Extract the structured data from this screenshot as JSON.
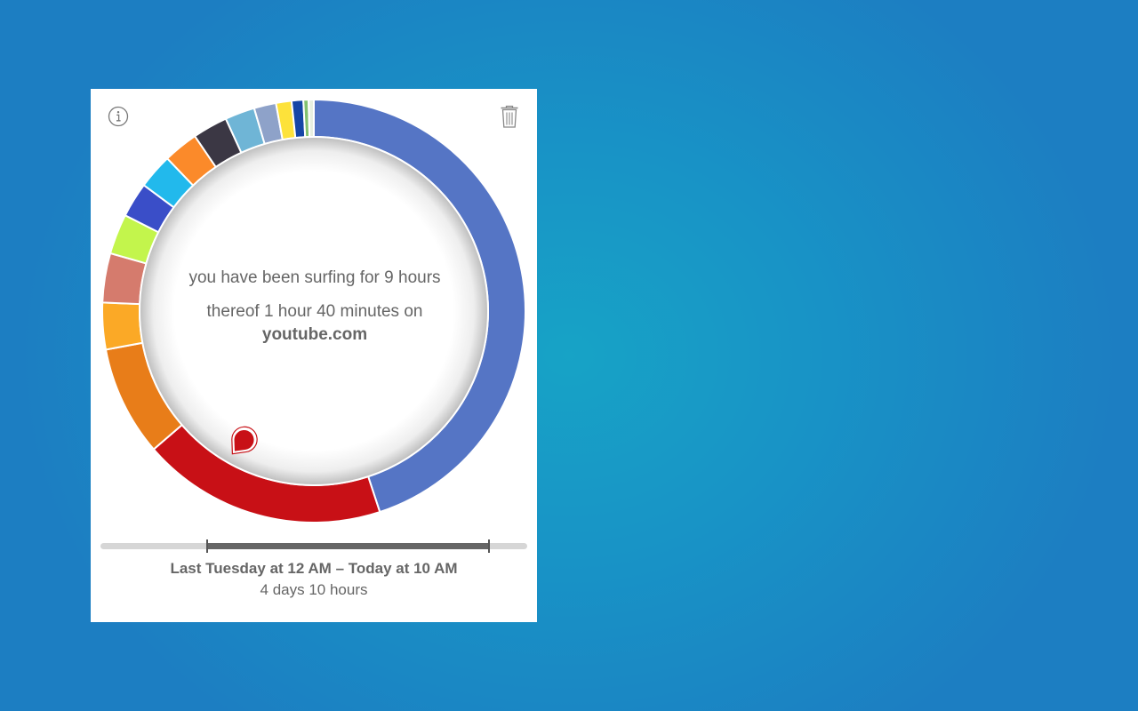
{
  "summary": {
    "surfing_text": "you have been surfing for 9 hours",
    "thereof_text": "thereof 1 hour 40 minutes on",
    "domain": "youtube.com"
  },
  "range": {
    "label": "Last Tuesday at 12 AM – Today at 10 AM",
    "duration": "4 days 10 hours",
    "start_fraction": 0.25,
    "end_fraction": 0.91
  },
  "icons": {
    "info": "info-icon",
    "trash": "trash-icon",
    "marker": "map-marker-icon"
  },
  "chart_data": {
    "type": "pie",
    "segments": [
      {
        "value": 0.454,
        "color": "#5575c5"
      },
      {
        "value": 0.189,
        "color": "#c81016"
      },
      {
        "value": 0.085,
        "color": "#e87d19"
      },
      {
        "value": 0.036,
        "color": "#fba926"
      },
      {
        "value": 0.038,
        "color": "#d57b6d"
      },
      {
        "value": 0.031,
        "color": "#c3f54c"
      },
      {
        "value": 0.027,
        "color": "#3a4ec8"
      },
      {
        "value": 0.027,
        "color": "#22b9ec"
      },
      {
        "value": 0.027,
        "color": "#fb8a2a"
      },
      {
        "value": 0.027,
        "color": "#3b3744"
      },
      {
        "value": 0.023,
        "color": "#6fb5d6"
      },
      {
        "value": 0.017,
        "color": "#8ea2c9"
      },
      {
        "value": 0.012,
        "color": "#fde23a"
      },
      {
        "value": 0.009,
        "color": "#1546a6"
      },
      {
        "value": 0.004,
        "color": "#82c16f"
      },
      {
        "value": 0.004,
        "color": "#e8efe0"
      }
    ]
  }
}
